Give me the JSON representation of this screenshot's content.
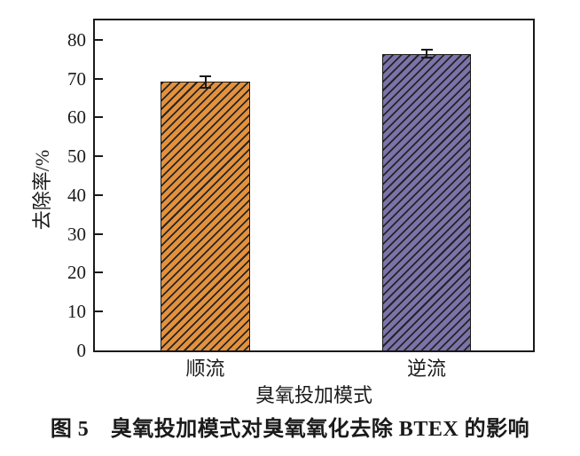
{
  "figure": {
    "caption": "图 5　臭氧投加模式对臭氧氧化去除 BTEX 的影响"
  },
  "chart_data": {
    "type": "bar",
    "title": "",
    "categories": [
      "顺流",
      "逆流"
    ],
    "values": [
      69.2,
      76.4
    ],
    "errors": [
      1.5,
      1.0
    ],
    "xlabel": "臭氧投加模式",
    "ylabel": "去除率/%",
    "ylim": [
      0,
      85
    ],
    "yticks": [
      0,
      10,
      20,
      30,
      40,
      50,
      60,
      70,
      80
    ],
    "grid": false,
    "legend_position": "none",
    "bar_fill_colors": [
      "#E3913C",
      "#7B73A9"
    ],
    "bar_hatch": "diagonal-forward",
    "bar_hatch_color": "#242424",
    "bar_border_color": "#1a1a1a",
    "axis_color": "#1a1a1a"
  }
}
